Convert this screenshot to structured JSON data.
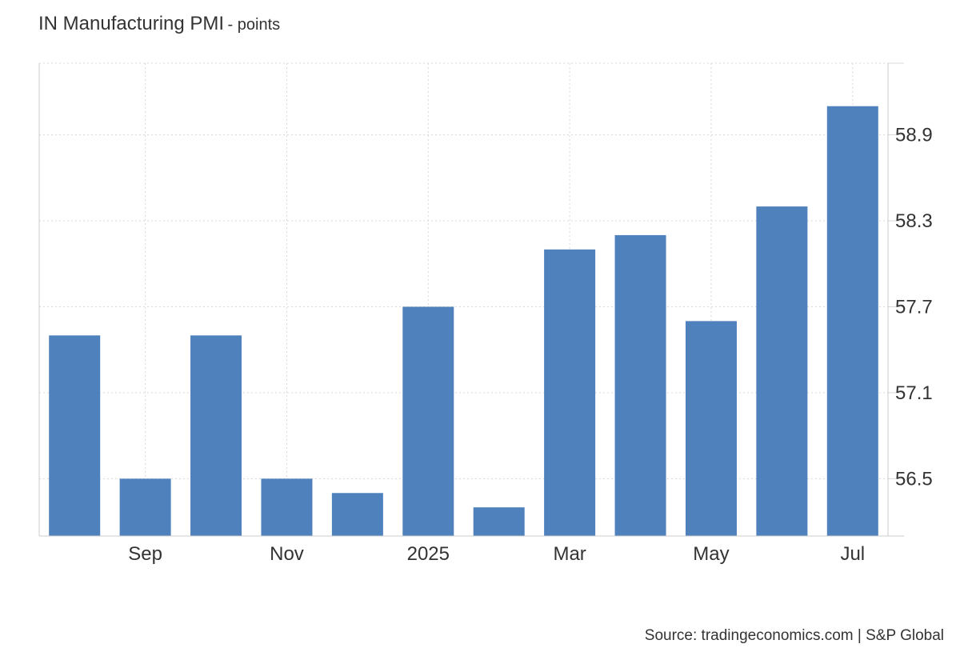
{
  "title": "IN Manufacturing PMI",
  "subtitle": "- points",
  "source": "Source: tradingeconomics.com | S&P Global",
  "colors": {
    "bar": "#4f81bd",
    "grid": "#d9d9d9",
    "axis": "#cccccc",
    "text": "#333333"
  },
  "chart_data": {
    "type": "bar",
    "categories": [
      "Aug 2024",
      "Sep 2024",
      "Oct 2024",
      "Nov 2024",
      "Dec 2024",
      "Jan 2025",
      "Feb 2025",
      "Mar 2025",
      "Apr 2025",
      "May 2025",
      "Jun 2025",
      "Jul 2025"
    ],
    "values": [
      57.5,
      56.5,
      57.5,
      56.5,
      56.4,
      57.7,
      56.3,
      58.1,
      58.2,
      57.6,
      58.4,
      59.1
    ],
    "x_tick_labels": [
      {
        "category": "Sep 2024",
        "label": "Sep"
      },
      {
        "category": "Nov 2024",
        "label": "Nov"
      },
      {
        "category": "Jan 2025",
        "label": "2025"
      },
      {
        "category": "Mar 2025",
        "label": "Mar"
      },
      {
        "category": "May 2025",
        "label": "May"
      },
      {
        "category": "Jul 2025",
        "label": "Jul"
      }
    ],
    "y_ticks": [
      56.5,
      57.1,
      57.7,
      58.3,
      58.9
    ],
    "ylim": [
      56.1,
      59.4
    ],
    "y_axis_side": "right",
    "grid": true,
    "legend": false
  }
}
